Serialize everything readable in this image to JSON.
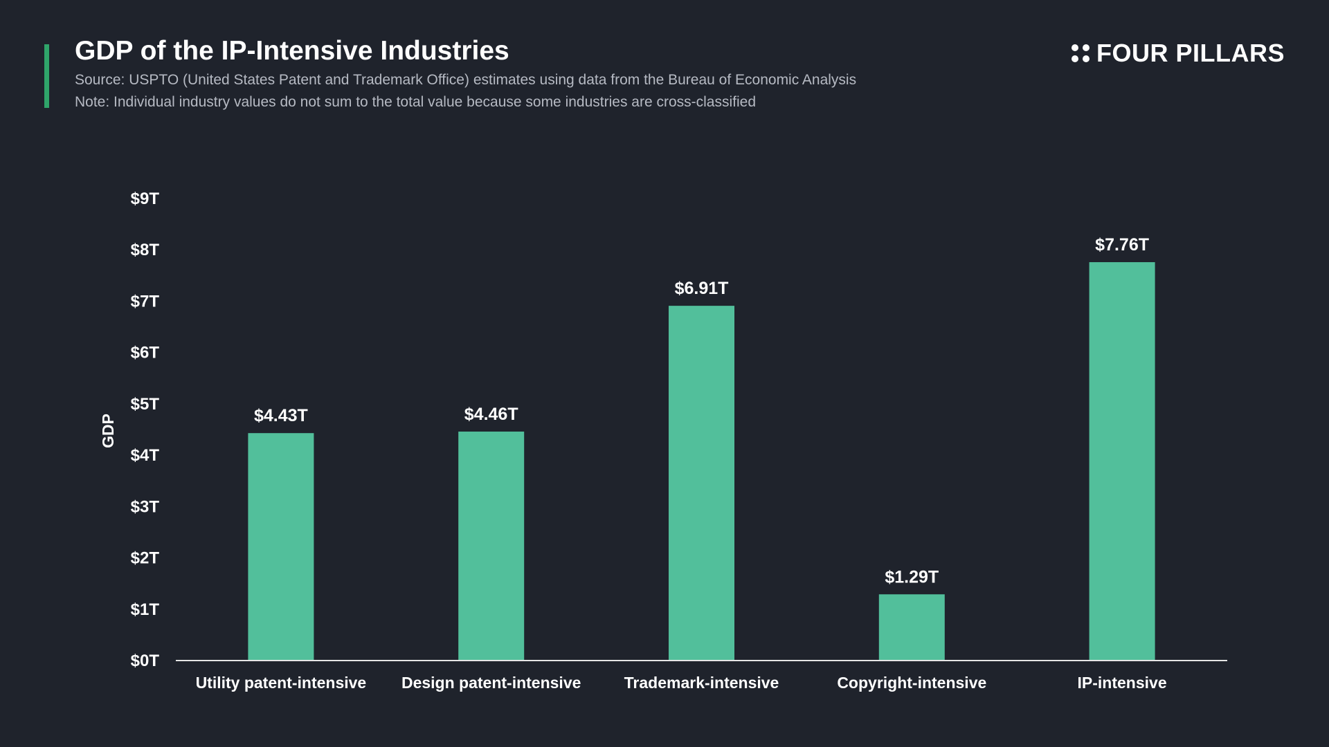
{
  "header": {
    "title": "GDP of the IP-Intensive Industries",
    "source": "Source: USPTO (United States Patent and Trademark Office) estimates using data from the Bureau of Economic Analysis",
    "note": "Note: Individual industry values do not sum to the total value because some industries are cross-classified"
  },
  "brand": {
    "name": "FOUR PILLARS",
    "icon": "four-dots-icon"
  },
  "colors": {
    "background": "#1f232c",
    "accent": "#2fa46a",
    "bar": "#52bf9b",
    "text": "#ffffff",
    "subtext": "#b6bac3"
  },
  "chart_data": {
    "type": "bar",
    "title": "",
    "xlabel": "",
    "ylabel": "GDP",
    "categories": [
      "Utility patent-intensive",
      "Design patent-intensive",
      "Trademark-intensive",
      "Copyright-intensive",
      "IP-intensive"
    ],
    "values": [
      4.43,
      4.46,
      6.91,
      1.29,
      7.76
    ],
    "value_labels": [
      "$4.43T",
      "$4.46T",
      "$6.91T",
      "$1.29T",
      "$7.76T"
    ],
    "ylim": [
      0,
      9
    ],
    "yticks": [
      0,
      1,
      2,
      3,
      4,
      5,
      6,
      7,
      8,
      9
    ],
    "ytick_labels": [
      "$0T",
      "$1T",
      "$2T",
      "$3T",
      "$4T",
      "$5T",
      "$6T",
      "$7T",
      "$8T",
      "$9T"
    ],
    "grid": false,
    "legend": "none"
  }
}
